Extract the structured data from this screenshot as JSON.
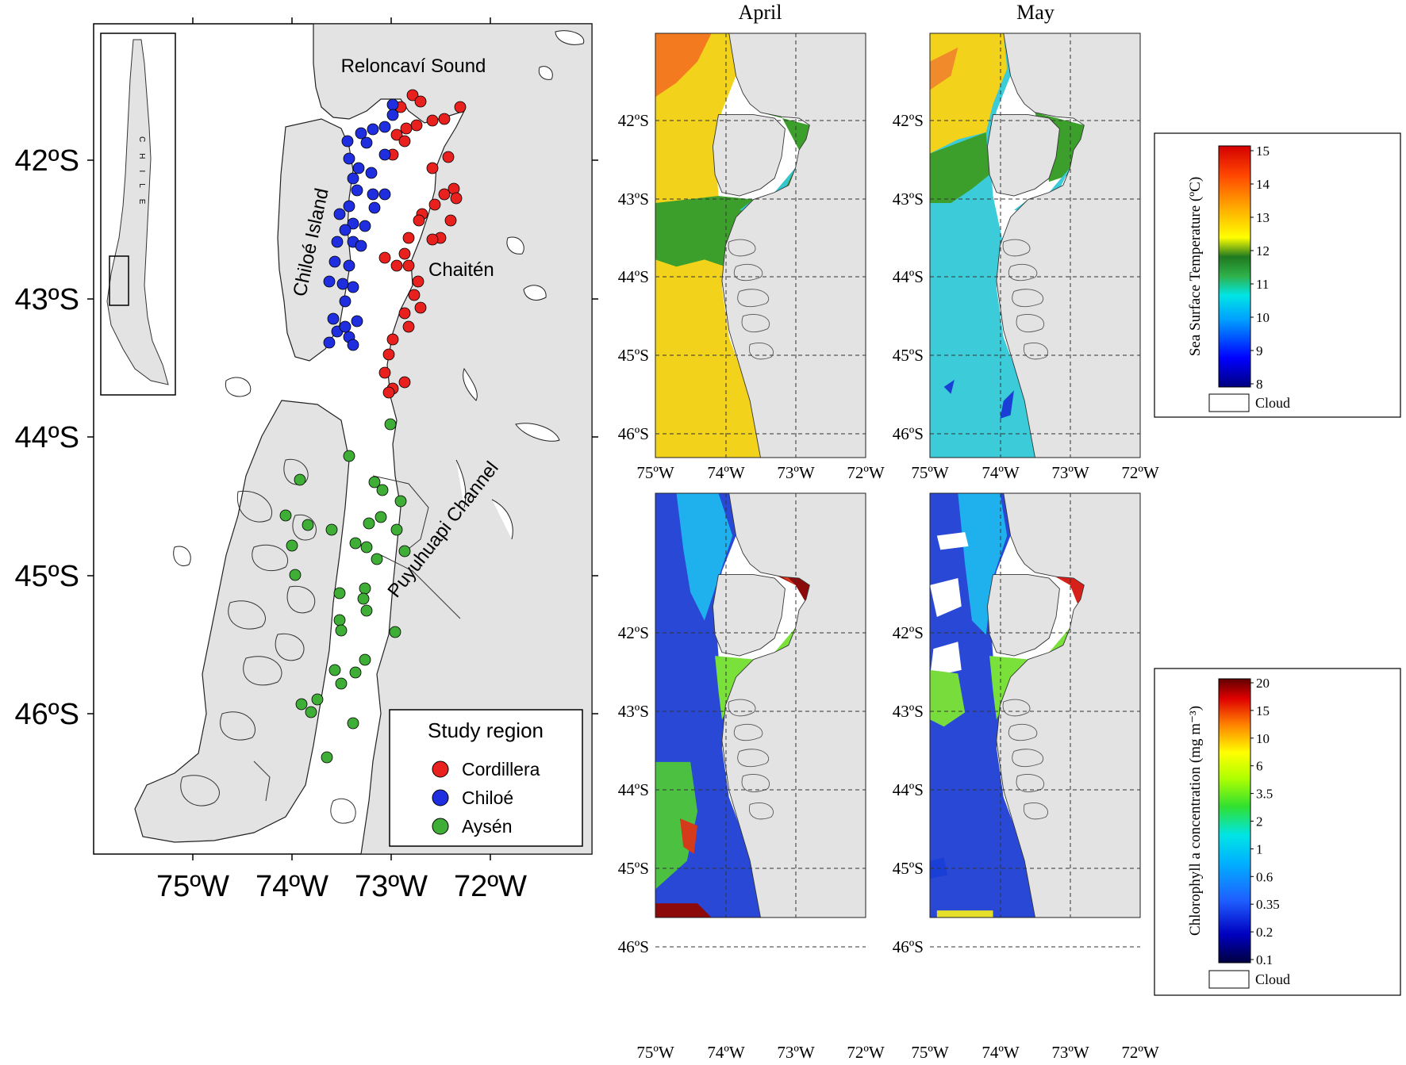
{
  "main_map": {
    "lat_ticks": [
      "42ºS",
      "43ºS",
      "44ºS",
      "45ºS",
      "46ºS"
    ],
    "lon_ticks": [
      "75ºW",
      "74ºW",
      "73ºW",
      "72ºW"
    ],
    "labels": {
      "reloncavi": "Reloncaví Sound",
      "chiloe_island": "Chiloé Island",
      "chaiten": "Chaitén",
      "puyuhuapi": "Puyuhuapi Channel"
    },
    "inset_label": "CHILE",
    "legend": {
      "title": "Study region",
      "items": [
        {
          "label": "Cordillera",
          "color": "#e8201e"
        },
        {
          "label": "Chiloé",
          "color": "#1f2fe0"
        },
        {
          "label": "Aysén",
          "color": "#3fae36"
        }
      ]
    }
  },
  "panels": {
    "columns": [
      "April",
      "May"
    ],
    "lat_ticks": [
      "42ºS",
      "43ºS",
      "44ºS",
      "45ºS",
      "46ºS"
    ],
    "lon_ticks": [
      "75ºW",
      "74ºW",
      "73ºW",
      "72ºW"
    ]
  },
  "sst_colorbar": {
    "title": "Sea Surface Temperature (ºC)",
    "ticks": [
      "15",
      "14",
      "13",
      "12",
      "11",
      "10",
      "9",
      "8"
    ],
    "cloud_label": "Cloud",
    "colors": [
      "#000080",
      "#0000ff",
      "#00a0ff",
      "#00e5e5",
      "#2fb14a",
      "#1f7a1f",
      "#ffff00",
      "#ffa500",
      "#ff4500",
      "#d40000"
    ]
  },
  "chl_colorbar": {
    "title": "Chlorophyll a concentration (mg m⁻³)",
    "ticks": [
      "20",
      "15",
      "10",
      "6",
      "3.5",
      "2",
      "1",
      "0.6",
      "0.35",
      "0.2",
      "0.1"
    ],
    "cloud_label": "Cloud",
    "colors": [
      "#000040",
      "#0000c0",
      "#1f5fff",
      "#00b0ff",
      "#00e5e5",
      "#30e030",
      "#b0ff00",
      "#ffff00",
      "#ff8000",
      "#e00000",
      "#600000"
    ]
  }
}
